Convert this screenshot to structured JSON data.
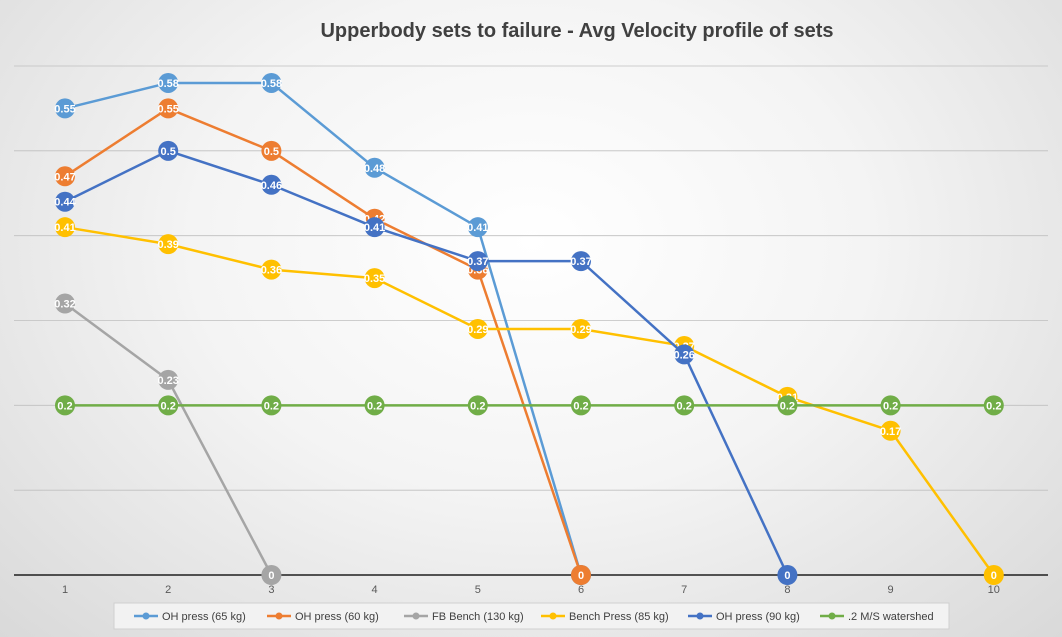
{
  "chart_data": {
    "type": "line",
    "title": "Upperbody sets to failure - Avg Velocity profile of sets",
    "xlabel": "",
    "ylabel": "",
    "categories": [
      "1",
      "2",
      "3",
      "4",
      "5",
      "6",
      "7",
      "8",
      "9",
      "10"
    ],
    "ylim": [
      0,
      0.6
    ],
    "y_gridlines": [
      0.1,
      0.2,
      0.3,
      0.4,
      0.5,
      0.6
    ],
    "grid": true,
    "legend": "bottom",
    "series": [
      {
        "name": "OH press (65 kg)",
        "color": "#5B9BD5",
        "values": [
          0.55,
          0.58,
          0.58,
          0.48,
          0.41,
          0,
          null,
          null,
          null,
          null
        ],
        "labels": [
          "0.55",
          "0.58",
          "0.58",
          "0.48",
          "0.41",
          "",
          "",
          "",
          "",
          ""
        ]
      },
      {
        "name": "OH press (60 kg)",
        "color": "#ED7D31",
        "values": [
          0.47,
          0.55,
          0.5,
          0.42,
          0.36,
          0,
          null,
          null,
          null,
          null
        ],
        "labels": [
          "0.47",
          "0.55",
          "0.5",
          "0.42",
          "0.36",
          "0",
          "",
          "",
          "",
          ""
        ]
      },
      {
        "name": "FB Bench (130 kg)",
        "color": "#A5A5A5",
        "values": [
          0.32,
          0.23,
          0,
          null,
          null,
          null,
          null,
          null,
          null,
          null
        ],
        "labels": [
          "0.32",
          "0.23",
          "0",
          "",
          "",
          "",
          "",
          "",
          "",
          ""
        ]
      },
      {
        "name": "Bench Press (85 kg)",
        "color": "#FFC000",
        "values": [
          0.41,
          0.39,
          0.36,
          0.35,
          0.29,
          0.29,
          0.27,
          0.21,
          0.17,
          0
        ],
        "labels": [
          "0.41",
          "0.39",
          "0.36",
          "0.35",
          "0.29",
          "0.29",
          "0.27",
          "0.21",
          "0.17",
          "0"
        ]
      },
      {
        "name": "OH press (90 kg)",
        "color": "#4472C4",
        "values": [
          0.44,
          0.5,
          0.46,
          0.41,
          0.37,
          0.37,
          0.26,
          0,
          null,
          null
        ],
        "labels": [
          "0.44",
          "0.5",
          "0.46",
          "0.41",
          "0.37",
          "0.37",
          "0.26",
          "0",
          "",
          ""
        ]
      },
      {
        "name": ".2 M/S watershed",
        "color": "#70AD47",
        "values": [
          0.2,
          0.2,
          0.2,
          0.2,
          0.2,
          0.2,
          0.2,
          0.2,
          0.2,
          0.2
        ],
        "labels": [
          "0.2",
          "0.2",
          "0.2",
          "0.2",
          "0.2",
          "0.2",
          "0.2",
          "0.2",
          "0.2",
          "0.2"
        ]
      }
    ]
  }
}
